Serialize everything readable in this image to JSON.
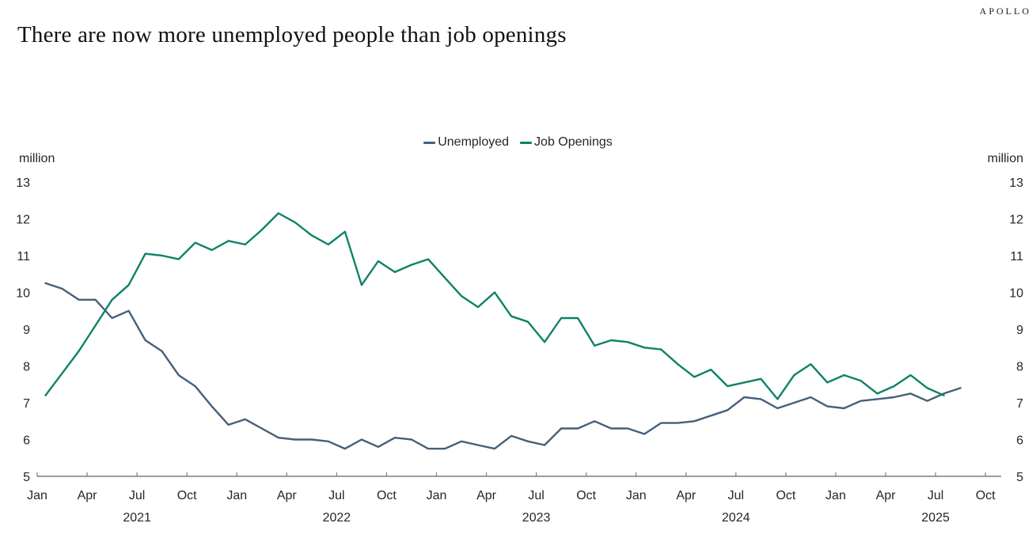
{
  "header": {
    "brand": "APOLLO",
    "title": "There are now more unemployed people than job openings"
  },
  "chart_data": {
    "type": "line",
    "title": "There are now more unemployed people than job openings",
    "unit_label": "million",
    "ylim": [
      5,
      13
    ],
    "yticks": [
      13,
      12,
      11,
      10,
      9,
      8,
      7,
      6,
      5
    ],
    "grid": false,
    "legend_position": "top-center",
    "x_tick_labels": [
      "Jan",
      "Apr",
      "Jul",
      "Oct",
      "Jan",
      "Apr",
      "Jul",
      "Oct",
      "Jan",
      "Apr",
      "Jul",
      "Oct",
      "Jan",
      "Apr",
      "Jul",
      "Oct",
      "Jan",
      "Apr",
      "Jul",
      "Oct"
    ],
    "year_labels": [
      "2021",
      "2022",
      "2023",
      "2024",
      "2025"
    ],
    "x_start": "Jan 2021",
    "x_frequency": "monthly",
    "series": [
      {
        "name": "Unemployed",
        "color": "#44607c",
        "values": [
          10.25,
          10.1,
          9.8,
          9.8,
          9.3,
          9.5,
          8.7,
          8.4,
          7.75,
          7.45,
          6.9,
          6.4,
          6.55,
          6.3,
          6.05,
          6.0,
          6.0,
          5.95,
          5.75,
          6.0,
          5.8,
          6.05,
          6.0,
          5.75,
          5.75,
          5.95,
          5.85,
          5.75,
          6.1,
          5.95,
          5.85,
          6.3,
          6.3,
          6.5,
          6.3,
          6.3,
          6.15,
          6.45,
          6.45,
          6.5,
          6.65,
          6.8,
          7.15,
          7.1,
          6.85,
          7.0,
          7.15,
          6.9,
          6.85,
          7.05,
          7.1,
          7.15,
          7.25,
          7.05,
          7.25,
          7.4
        ]
      },
      {
        "name": "Job Openings",
        "color": "#0e8268",
        "values": [
          7.2,
          7.8,
          8.4,
          9.1,
          9.8,
          10.2,
          11.05,
          11.0,
          10.9,
          11.35,
          11.15,
          11.4,
          11.3,
          11.7,
          12.15,
          11.9,
          11.55,
          11.3,
          11.65,
          10.2,
          10.85,
          10.55,
          10.75,
          10.9,
          10.4,
          9.9,
          9.6,
          10.0,
          9.35,
          9.2,
          8.65,
          9.3,
          9.3,
          8.55,
          8.7,
          8.65,
          8.5,
          8.45,
          8.05,
          7.7,
          7.9,
          7.45,
          7.55,
          7.65,
          7.1,
          7.75,
          8.05,
          7.55,
          7.75,
          7.6,
          7.25,
          7.45,
          7.75,
          7.4,
          7.2
        ]
      }
    ]
  },
  "style": {
    "axis_color": "#7f7f7f",
    "text_color": "#262626"
  }
}
